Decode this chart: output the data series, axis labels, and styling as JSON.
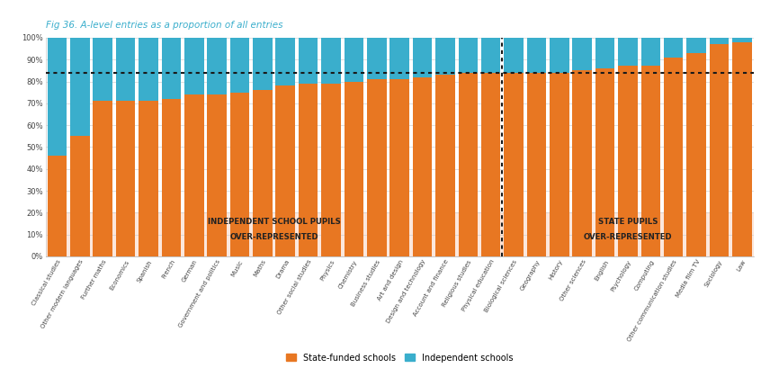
{
  "title": "Fig 36. A-level entries as a proportion of all entries",
  "title_color": "#3aaecc",
  "categories": [
    "Classical studies",
    "Other modern languages",
    "Further maths",
    "Economics",
    "Spanish",
    "French",
    "German",
    "Government and politics",
    "Music",
    "Maths",
    "Drama",
    "Other social studies",
    "Physics",
    "Chemistry",
    "Business studies",
    "Art and design",
    "Design and technology",
    "Account and finance",
    "Religious studies",
    "Physical education",
    "Biological sciences",
    "Geography",
    "History",
    "Other sciences",
    "English",
    "Psychology",
    "Computing",
    "Other communication studies",
    "Media film TV",
    "Sociology",
    "Law"
  ],
  "state_values": [
    46,
    55,
    71,
    71,
    71,
    72,
    74,
    74,
    75,
    76,
    78,
    79,
    79,
    80,
    81,
    81,
    82,
    83,
    84,
    84,
    84,
    84,
    84,
    85,
    86,
    87,
    87,
    91,
    93,
    97,
    98
  ],
  "independent_values": [
    54,
    45,
    29,
    29,
    29,
    28,
    26,
    26,
    25,
    24,
    22,
    21,
    21,
    20,
    19,
    19,
    18,
    17,
    16,
    16,
    16,
    16,
    16,
    15,
    14,
    13,
    13,
    9,
    7,
    3,
    2
  ],
  "state_color": "#e87722",
  "independent_color": "#3aaecc",
  "reference_line": 84,
  "reference_line_color": "#1a1a1a",
  "divider_index": 19,
  "left_label_line1": "INDEPENDENT SCHOOL PUPILS",
  "left_label_line2": "OVER-REPRESENTED",
  "right_label_line1": "STATE PUPILS",
  "right_label_line2": "OVER-REPRESENTED",
  "label_color": "#222222",
  "bg_color": "#fbd5c0",
  "legend_state": "State-funded schools",
  "legend_independent": "Independent schools"
}
